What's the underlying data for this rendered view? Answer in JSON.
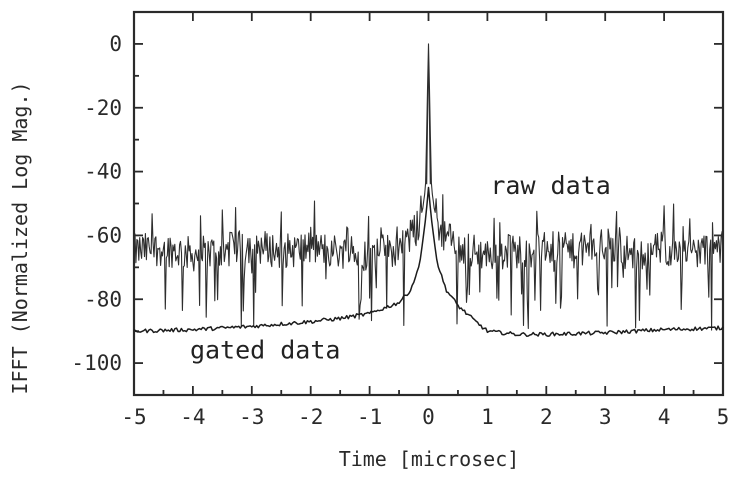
{
  "chart_data": {
    "type": "line",
    "title": "",
    "xlabel": "Time [microsec]",
    "ylabel": "IFFT (Normalized Log Mag.)",
    "xlim": [
      -5,
      5
    ],
    "ylim": [
      -110,
      10
    ],
    "xticks": [
      "-5",
      "-4",
      "-3",
      "-2",
      "-1",
      "0",
      "1",
      "2",
      "3",
      "4",
      "5"
    ],
    "yticks": [
      "0",
      "-20",
      "-40",
      "-60",
      "-80",
      "-100"
    ],
    "grid": false,
    "annotations": [
      {
        "text": "raw data",
        "x": 1.05,
        "y": -47
      },
      {
        "text": "gated data",
        "x": -4.05,
        "y": -98.5
      }
    ],
    "series": [
      {
        "description_from_label": "raw data",
        "x": [
          -5,
          -4.5,
          -4,
          -3.5,
          -3,
          -2.5,
          -2,
          -1.5,
          -1,
          -0.5,
          -0.2,
          -0.1,
          -0.05,
          0,
          0.05,
          0.1,
          0.2,
          0.5,
          1,
          1.5,
          2,
          2.5,
          3,
          3.5,
          4,
          4.5,
          5
        ],
        "y": [
          -65,
          -64,
          -66,
          -65,
          -63,
          -65,
          -64,
          -65,
          -66,
          -64,
          -58,
          -52,
          -45,
          0,
          -45,
          -52,
          -58,
          -64,
          -66,
          -65,
          -64,
          -65,
          -63,
          -66,
          -64,
          -65,
          -64
        ]
      },
      {
        "description_from_label": "gated data",
        "x": [
          -5,
          -4,
          -3,
          -2,
          -1.5,
          -1,
          -0.5,
          -0.3,
          -0.15,
          -0.05,
          0,
          0.05,
          0.15,
          0.3,
          0.5,
          0.8,
          1,
          1.5,
          2,
          3,
          4,
          5
        ],
        "y": [
          -90,
          -89.5,
          -88.5,
          -87,
          -86,
          -84.5,
          -81,
          -77,
          -69,
          -55,
          -45,
          -55,
          -69,
          -77,
          -82,
          -87,
          -90,
          -91,
          -91,
          -90.5,
          -89.5,
          -89
        ]
      }
    ]
  }
}
